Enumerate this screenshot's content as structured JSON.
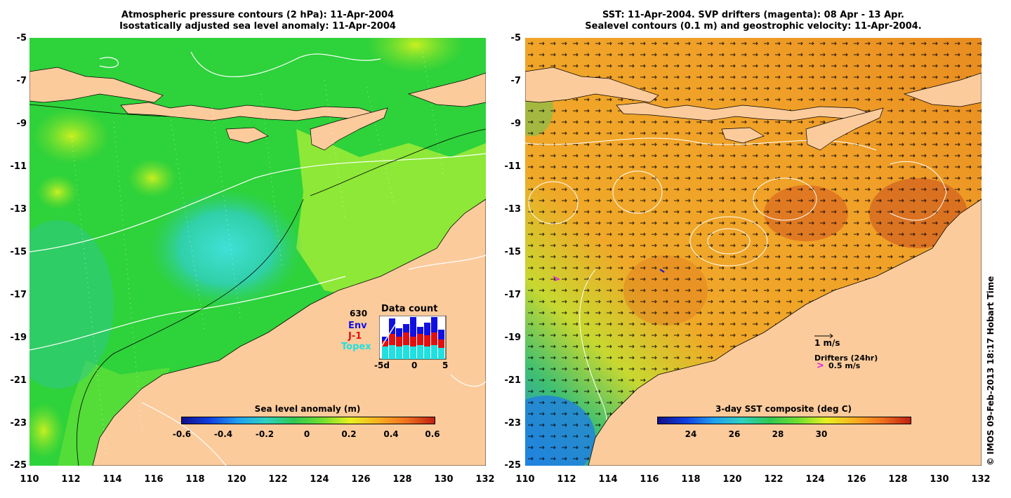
{
  "left": {
    "title1": "Atmospheric pressure contours (2 hPa): 11-Apr-2004",
    "title2": "Isostatically adjusted sea level anomaly: 11-Apr-2004",
    "colorbar_title": "Sea level anomaly (m)",
    "colorbar_ticks": [
      "-0.6",
      "-0.4",
      "-0.2",
      "0",
      "0.2",
      "0.4",
      "0.6"
    ],
    "data_count": {
      "total": "630",
      "title": "Data count",
      "env": "Env",
      "j1": "J-1",
      "topex": "Topex",
      "xticks": [
        "-5d",
        "0",
        "5"
      ],
      "env_color": "#1010e0",
      "j1_color": "#e01010",
      "topex_color": "#20e0e0"
    }
  },
  "right": {
    "title1": "SST: 11-Apr-2004. SVP drifters (magenta): 08 Apr - 13 Apr.",
    "title2": "Sealevel contours (0.1 m) and geostrophic velocity: 11-Apr-2004.",
    "colorbar_title": "3-day SST composite (deg C)",
    "colorbar_ticks": [
      "24",
      "26",
      "28",
      "30"
    ],
    "vel_legend": "1 m/s",
    "drifters_legend": "Drifters (24hr)",
    "drifters_speed": "0.5 m/s",
    "drifter_symbol": ">",
    "drifter_color": "#e020e0"
  },
  "axes": {
    "yticks": [
      "-5",
      "-7",
      "-9",
      "-11",
      "-13",
      "-15",
      "-17",
      "-19",
      "-21",
      "-23",
      "-25"
    ],
    "xticks": [
      "110",
      "112",
      "114",
      "116",
      "118",
      "120",
      "122",
      "124",
      "126",
      "128",
      "130",
      "132"
    ]
  },
  "copyright": "© IMOS 09-Feb-2013 18:17 Hobart Time",
  "colors": {
    "land": "#fccb9c",
    "left_sea": "#2ed23a",
    "right_sea": "#f0a028"
  }
}
